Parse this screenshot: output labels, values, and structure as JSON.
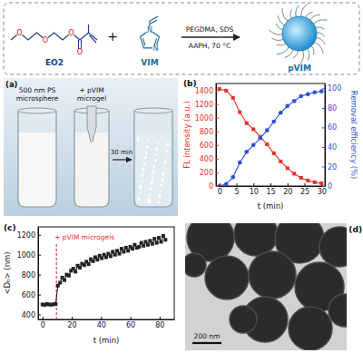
{
  "scheme": {
    "reactant_1": "EO2",
    "plus": "+",
    "reactant_2": "VIM",
    "conditions_above": "PEGDMA, SDS",
    "conditions_below": "AAPH, 70 °C",
    "product": "pVIM",
    "atom_oxygen": "O",
    "atom_nitrogen": "N"
  },
  "photo": {
    "panel_label": "(a)",
    "vial_1_label": [
      "500 nm PS",
      "microsphere"
    ],
    "vial_2_label": [
      "+ pVIM",
      "microgel"
    ],
    "time_label": "30 min"
  },
  "tem_image": {
    "panel_label": "(d)",
    "scale_bar": "200 nm"
  },
  "chart_data": [
    {
      "type": "line",
      "title": "(b)",
      "x_label": "t (min)",
      "y_label": "FL intensity (a.u.)",
      "y2_label": "Removal efficiency (%)",
      "x": [
        0,
        2,
        4,
        6,
        8,
        10,
        12,
        14,
        16,
        18,
        20,
        22,
        24,
        26,
        28,
        30
      ],
      "xlim": [
        -1,
        31
      ],
      "xticks": [
        0,
        5,
        10,
        15,
        20,
        25,
        30
      ],
      "ylim": [
        0,
        1500
      ],
      "yticks": [
        0,
        200,
        400,
        600,
        800,
        1000,
        1200,
        1400
      ],
      "y2lim": [
        0,
        105
      ],
      "y2ticks": [
        0,
        20,
        40,
        60,
        80,
        100
      ],
      "series": [
        {
          "color": "#e8312a",
          "marker": "square",
          "values": [
            1420,
            1395,
            1290,
            1080,
            920,
            830,
            720,
            610,
            480,
            360,
            260,
            180,
            120,
            80,
            55,
            40
          ]
        },
        {
          "color": "#2e4fd8",
          "marker": "circle",
          "axis": "y2",
          "values": [
            0,
            2,
            9,
            24,
            35,
            42,
            49,
            57,
            66,
            75,
            82,
            87,
            92,
            94,
            96,
            97
          ]
        }
      ]
    },
    {
      "type": "line",
      "title": "(c)",
      "x_label": "t (min)",
      "y_label": "<Dₕ> (nm)",
      "x": [
        0,
        1.5,
        3,
        4.5,
        6,
        7.5,
        9,
        10.5,
        12,
        13.5,
        15,
        16.5,
        18,
        19.5,
        21,
        22.5,
        24,
        25.5,
        27,
        28.5,
        30,
        31.5,
        33,
        34.5,
        36,
        37.5,
        39,
        40.5,
        42,
        43.5,
        45,
        46.5,
        48,
        49.5,
        51,
        52.5,
        54,
        55.5,
        57,
        58.5,
        60,
        61.5,
        63,
        64.5,
        66,
        67.5,
        69,
        70.5,
        72,
        73.5,
        75,
        76.5,
        78,
        79.5,
        81,
        82.5,
        84
      ],
      "xlim": [
        -3,
        90
      ],
      "xticks": [
        0,
        20,
        40,
        60,
        80
      ],
      "ylim": [
        350,
        1280
      ],
      "yticks": [
        400,
        600,
        800,
        1000,
        1200
      ],
      "series": [
        {
          "color": "#222222",
          "marker": "square",
          "values": [
            500,
            495,
            505,
            500,
            498,
            502,
            505,
            690,
            720,
            770,
            745,
            800,
            790,
            840,
            860,
            830,
            890,
            870,
            910,
            895,
            930,
            905,
            955,
            935,
            975,
            950,
            990,
            965,
            1000,
            975,
            1010,
            985,
            1030,
            1000,
            1040,
            1010,
            1060,
            1030,
            1070,
            1040,
            1080,
            1060,
            1100,
            1070,
            1080,
            1120,
            1090,
            1130,
            1100,
            1140,
            1110,
            1160,
            1120,
            1170,
            1130,
            1190,
            1150
          ]
        }
      ],
      "annotations": [
        {
          "text": "+ pVIM microgels",
          "x": 9.5,
          "color": "#e8312a",
          "line_style": "dashed"
        }
      ]
    }
  ]
}
